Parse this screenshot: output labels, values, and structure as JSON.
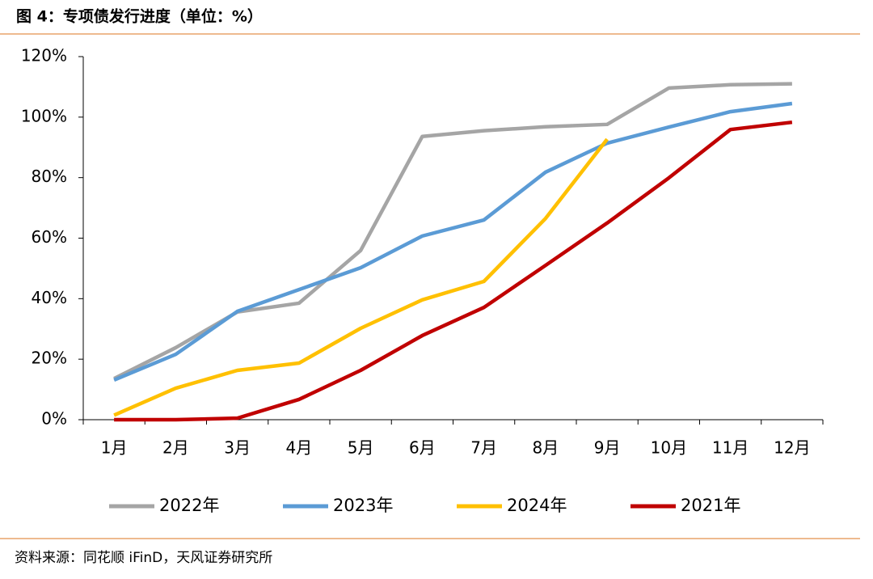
{
  "chart_data": {
    "type": "line",
    "title": "图 4：专项债发行进度（单位：%）",
    "source": "资料来源：同花顺 iFinD，天风证券研究所",
    "categories": [
      "1月",
      "2月",
      "3月",
      "4月",
      "5月",
      "6月",
      "7月",
      "8月",
      "9月",
      "10月",
      "11月",
      "12月"
    ],
    "series": [
      {
        "name": "2022年",
        "color": "#a5a5a5",
        "values": [
          13.6,
          23.8,
          35.6,
          38.5,
          55.9,
          93.6,
          95.5,
          96.8,
          97.6,
          109.6,
          110.7,
          111
        ]
      },
      {
        "name": "2023年",
        "color": "#5b9bd5",
        "values": [
          13.1,
          21.6,
          35.8,
          43,
          50.2,
          60.7,
          66,
          81.8,
          91.4,
          96.7,
          101.8,
          104.5
        ]
      },
      {
        "name": "2024年",
        "color": "#ffc000",
        "values": [
          1.5,
          10.4,
          16.3,
          18.7,
          30.2,
          39.6,
          45.7,
          66.5,
          92.7,
          null,
          null,
          null
        ]
      },
      {
        "name": "2021年",
        "color": "#c00000",
        "values": [
          0,
          0,
          0.5,
          6.7,
          16.3,
          27.8,
          37.1,
          51,
          65,
          79.9,
          95.9,
          98.3
        ]
      }
    ],
    "ylim": [
      0,
      120
    ],
    "yticks": [
      {
        "value": 0,
        "label": "0%"
      },
      {
        "value": 20,
        "label": "20%"
      },
      {
        "value": 40,
        "label": "40%"
      },
      {
        "value": 60,
        "label": "60%"
      },
      {
        "value": 80,
        "label": "80%"
      },
      {
        "value": 100,
        "label": "100%"
      },
      {
        "value": 120,
        "label": "120%"
      }
    ],
    "legend": "bottom"
  }
}
